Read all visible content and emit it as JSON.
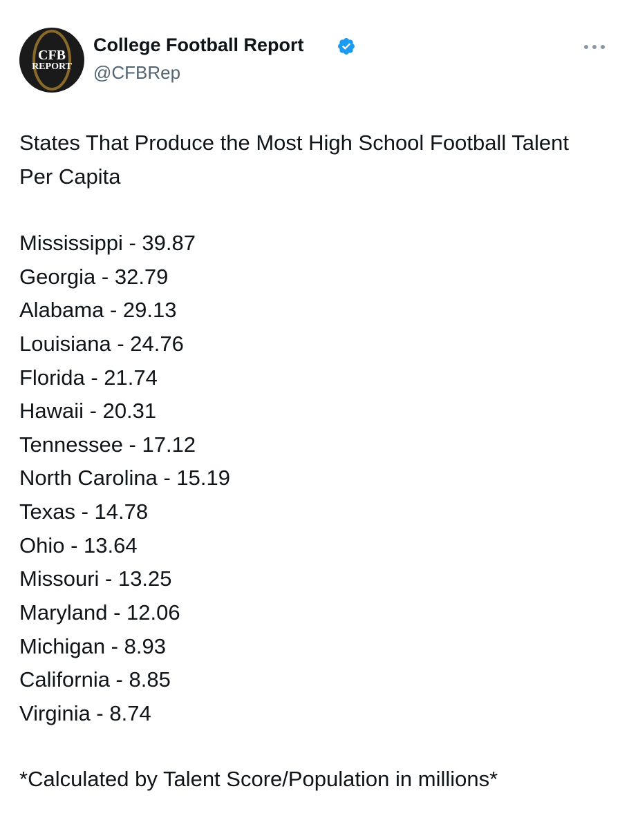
{
  "header": {
    "name": "College Football Report",
    "handle": "@CFBRep",
    "avatar": {
      "line1": "CFB",
      "line2": "REPORT"
    }
  },
  "body": {
    "title": "States That Produce the Most High School Football Talent Per Capita",
    "items": [
      "Mississippi - 39.87",
      "Georgia - 32.79",
      "Alabama - 29.13",
      "Louisiana - 24.76",
      "Florida - 21.74",
      "Hawaii - 20.31",
      "Tennessee - 17.12",
      "North Carolina - 15.19",
      "Texas - 14.78",
      "Ohio - 13.64",
      "Missouri - 13.25",
      "Maryland - 12.06",
      "Michigan - 8.93",
      "California - 8.85",
      "Virginia - 8.74"
    ],
    "footnote": "*Calculated by Talent Score/Population in millions*"
  }
}
